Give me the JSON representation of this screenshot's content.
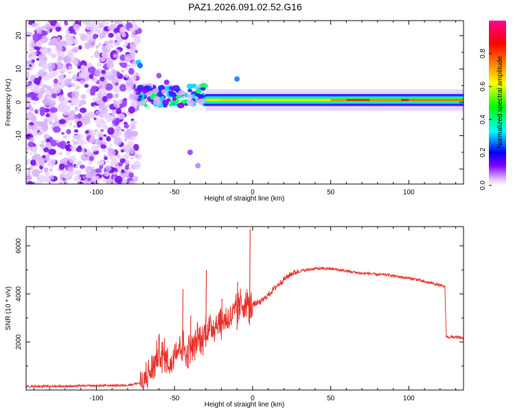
{
  "chart_data": [
    {
      "type": "heatmap",
      "title": "PAZ1.2026.091.02.52.G16",
      "xlabel": "Height of straight line (km)",
      "ylabel": "Frequency (Hz)",
      "xlim": [
        -145,
        135
      ],
      "ylim": [
        -24.5,
        24.5
      ],
      "xticks": [
        -100,
        -50,
        0,
        50,
        100
      ],
      "yticks": [
        -20,
        -10,
        0,
        10,
        20
      ],
      "colorbar": {
        "label": "Normalized spectral amplitude",
        "range": [
          0,
          1
        ],
        "ticks": [
          "0.0",
          "0.2",
          "0.4",
          "0.6",
          "0.8"
        ],
        "colors": [
          "#ffffff",
          "#e0b0ff",
          "#8000ff",
          "#0000ff",
          "#00ffff",
          "#00ff00",
          "#ffff00",
          "#ff8000",
          "#ff0000",
          "#ff00a0"
        ]
      },
      "regions": {
        "noise_band": {
          "x": [
            -145,
            -73
          ],
          "freq": [
            -24.5,
            24.5
          ]
        },
        "transition": {
          "x": [
            -73,
            -30
          ]
        },
        "signal_line_freq": 0.7,
        "signal_from_x": -30
      }
    },
    {
      "type": "line",
      "xlabel": "Height of straight line (km)",
      "ylabel": "SNR (10 * v/v)",
      "xlim": [
        -145,
        135
      ],
      "ylim": [
        0,
        6800
      ],
      "xticks": [
        -100,
        -50,
        0,
        50,
        100
      ],
      "yticks": [
        2000,
        4000,
        6000
      ],
      "color": "#e8302a",
      "series": [
        {
          "name": "SNR",
          "x": [
            -145,
            -120,
            -100,
            -80,
            -72,
            -68,
            -65,
            -62,
            -60,
            -58,
            -55,
            -52,
            -50,
            -48,
            -45,
            -42,
            -40,
            -38,
            -35,
            -32,
            -30,
            -28,
            -25,
            -22,
            -20,
            -18,
            -15,
            -12,
            -10,
            -8,
            -6,
            -4,
            -2,
            0,
            2,
            5,
            10,
            15,
            20,
            25,
            30,
            35,
            40,
            45,
            50,
            55,
            60,
            65,
            70,
            75,
            80,
            85,
            90,
            95,
            100,
            105,
            110,
            115,
            120,
            123,
            124,
            125,
            128,
            130,
            135
          ],
          "values": [
            150,
            160,
            180,
            200,
            300,
            600,
            800,
            1200,
            1700,
            1500,
            1300,
            1000,
            1800,
            1700,
            2000,
            1400,
            1900,
            1700,
            2200,
            2000,
            2600,
            2500,
            2700,
            2800,
            2900,
            2900,
            3000,
            3100,
            3300,
            3500,
            3600,
            3600,
            3500,
            3550,
            3600,
            3650,
            3950,
            4300,
            4600,
            4850,
            4950,
            5000,
            5050,
            5050,
            5050,
            5000,
            4950,
            4900,
            4850,
            4850,
            4800,
            4800,
            4750,
            4700,
            4650,
            4600,
            4500,
            4450,
            4350,
            4300,
            2250,
            2200,
            2200,
            2200,
            2150
          ],
          "spikes": [
            {
              "x": -58,
              "value": 2000
            },
            {
              "x": -45,
              "value": 4200
            },
            {
              "x": -40,
              "value": 3100
            },
            {
              "x": -30,
              "value": 5000
            },
            {
              "x": -20,
              "value": 3800
            },
            {
              "x": -10,
              "value": 4500
            },
            {
              "x": -2,
              "value": 6700
            }
          ]
        }
      ]
    }
  ]
}
